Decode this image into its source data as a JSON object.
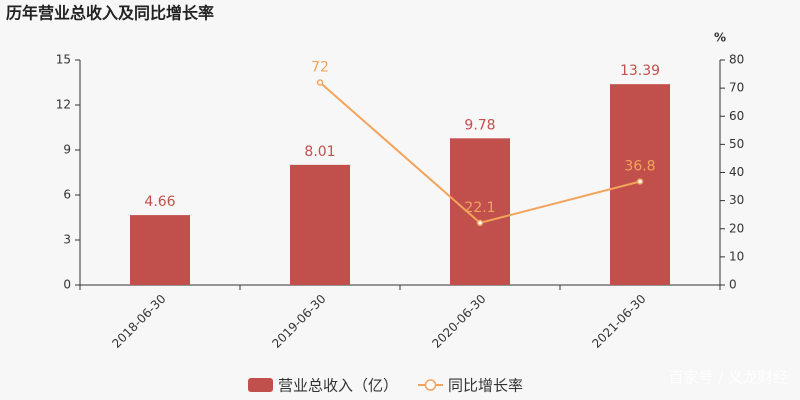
{
  "chart_data": {
    "type": "bar",
    "title": "历年营业总收入及同比增长率",
    "categories": [
      "2018-06-30",
      "2019-06-30",
      "2020-06-30",
      "2021-06-30"
    ],
    "series": [
      {
        "name": "营业总收入（亿）",
        "type": "bar",
        "color": "#c1504c",
        "values": [
          4.66,
          8.01,
          9.78,
          13.39
        ]
      },
      {
        "name": "同比增长率",
        "type": "line",
        "color": "#f2a45c",
        "axis": "y2",
        "values": [
          null,
          72,
          22.1,
          36.8
        ]
      }
    ],
    "ylim": [
      0,
      15
    ],
    "yticks": [
      0,
      3,
      6,
      9,
      12,
      15
    ],
    "y2label": "%",
    "y2lim": [
      0,
      80
    ],
    "y2ticks": [
      0,
      10,
      20,
      30,
      40,
      50,
      60,
      70,
      80
    ],
    "watermark": "百家号 / 义龙财经"
  }
}
